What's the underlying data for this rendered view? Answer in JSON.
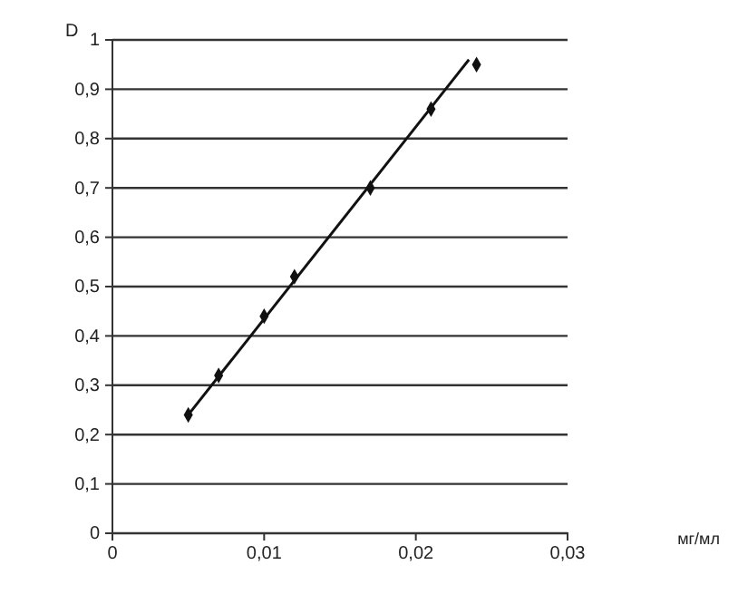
{
  "chart_data": {
    "type": "scatter",
    "annotations": [
      "мг/мл"
    ],
    "ylabel": "D",
    "xlim": [
      0,
      0.03
    ],
    "ylim": [
      0,
      1
    ],
    "xticks": [
      {
        "value": 0,
        "label": "0"
      },
      {
        "value": 0.01,
        "label": "0,01"
      },
      {
        "value": 0.02,
        "label": "0,02"
      },
      {
        "value": 0.03,
        "label": "0,03"
      }
    ],
    "yticks": [
      {
        "value": 0,
        "label": "0"
      },
      {
        "value": 0.1,
        "label": "0,1"
      },
      {
        "value": 0.2,
        "label": "0,2"
      },
      {
        "value": 0.3,
        "label": "0,3"
      },
      {
        "value": 0.4,
        "label": "0,4"
      },
      {
        "value": 0.5,
        "label": "0,5"
      },
      {
        "value": 0.6,
        "label": "0,6"
      },
      {
        "value": 0.7,
        "label": "0,7"
      },
      {
        "value": 0.8,
        "label": "0,8"
      },
      {
        "value": 0.9,
        "label": "0,9"
      },
      {
        "value": 1,
        "label": "1"
      }
    ],
    "grid": "y",
    "series": [
      {
        "marker": "diamond",
        "color": "#111111",
        "x": [
          0.005,
          0.007,
          0.01,
          0.012,
          0.017,
          0.021,
          0.024
        ],
        "values": [
          0.24,
          0.32,
          0.44,
          0.52,
          0.7,
          0.86,
          0.95
        ]
      },
      {
        "type": "line",
        "color": "#111111",
        "x": [
          0.005,
          0.0235
        ],
        "values": [
          0.24,
          0.96
        ]
      }
    ]
  }
}
